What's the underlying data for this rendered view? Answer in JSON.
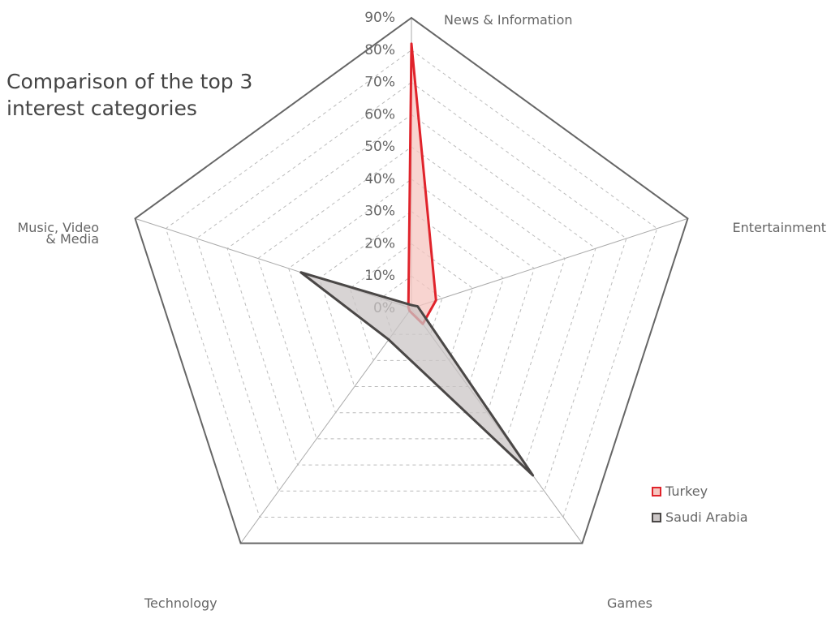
{
  "chart_data": {
    "type": "radar",
    "title": "Comparison of the top 3 interest categories",
    "categories": [
      "News & Information",
      "Entertainment",
      "Games",
      "Technology",
      "Music, Video\n& Media"
    ],
    "series": [
      {
        "name": "Turkey",
        "color": "#e0232b",
        "fill": "#f5c6c0",
        "values": [
          82,
          8,
          6,
          1,
          1
        ]
      },
      {
        "name": "Saudi Arabia",
        "color": "#4a4746",
        "fill": "#cbc6c6",
        "values": [
          1,
          2,
          64,
          12,
          36
        ]
      }
    ],
    "ylim": [
      0,
      90
    ],
    "yticks": [
      {
        "value": 0,
        "label": "0%"
      },
      {
        "value": 10,
        "label": "10%"
      },
      {
        "value": 20,
        "label": "20%"
      },
      {
        "value": 30,
        "label": "30%"
      },
      {
        "value": 40,
        "label": "40%"
      },
      {
        "value": 50,
        "label": "50%"
      },
      {
        "value": 60,
        "label": "60%"
      },
      {
        "value": 70,
        "label": "70%"
      },
      {
        "value": 80,
        "label": "80%"
      },
      {
        "value": 90,
        "label": "90%"
      }
    ]
  }
}
